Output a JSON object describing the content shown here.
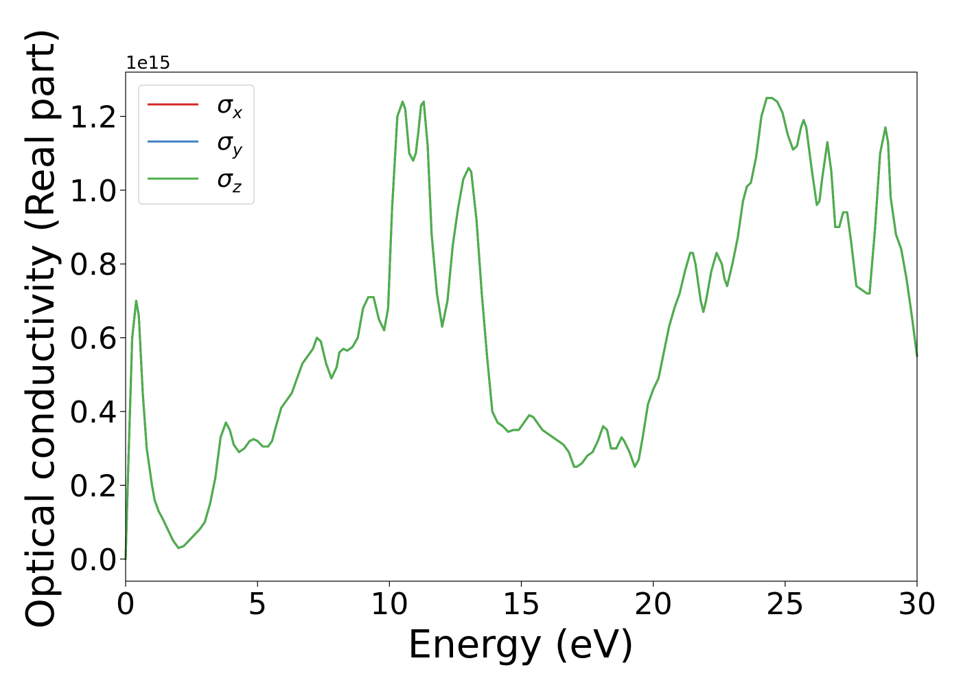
{
  "chart_data": {
    "type": "line",
    "title": "",
    "xlabel": "Energy (eV)",
    "ylabel": "Optical conductivity (Real part)",
    "y_offset_label": "1e15",
    "y_scale_factor": 1000000000000000.0,
    "xlim": [
      0,
      30
    ],
    "ylim": [
      -0.06,
      1.32
    ],
    "x_ticks": [
      0,
      5,
      10,
      15,
      20,
      25,
      30
    ],
    "x_tick_labels": [
      "0",
      "5",
      "10",
      "15",
      "20",
      "25",
      "30"
    ],
    "y_ticks": [
      0.0,
      0.2,
      0.4,
      0.6,
      0.8,
      1.0,
      1.2
    ],
    "y_tick_labels": [
      "0.0",
      "0.2",
      "0.4",
      "0.6",
      "0.8",
      "1.0",
      "1.2"
    ],
    "grid": false,
    "legend_position": "top-left",
    "series_note": "All three components overlap exactly; values given in units of 1e15.",
    "x": [
      0,
      0.1,
      0.25,
      0.4,
      0.5,
      0.65,
      0.8,
      1.0,
      1.1,
      1.25,
      1.4,
      1.6,
      1.8,
      2.0,
      2.2,
      2.4,
      2.6,
      2.8,
      3.0,
      3.2,
      3.4,
      3.6,
      3.8,
      3.95,
      4.1,
      4.3,
      4.5,
      4.7,
      4.85,
      5.0,
      5.2,
      5.4,
      5.55,
      5.7,
      5.9,
      6.1,
      6.3,
      6.5,
      6.7,
      6.9,
      7.1,
      7.25,
      7.4,
      7.5,
      7.6,
      7.8,
      8.0,
      8.1,
      8.25,
      8.4,
      8.6,
      8.8,
      9.0,
      9.2,
      9.4,
      9.6,
      9.8,
      9.95,
      10.1,
      10.3,
      10.5,
      10.6,
      10.75,
      10.9,
      11.0,
      11.1,
      11.2,
      11.3,
      11.45,
      11.6,
      11.8,
      12.0,
      12.2,
      12.4,
      12.6,
      12.8,
      13.0,
      13.1,
      13.3,
      13.5,
      13.7,
      13.9,
      14.1,
      14.3,
      14.5,
      14.7,
      14.9,
      15.1,
      15.3,
      15.45,
      15.6,
      15.8,
      16.0,
      16.2,
      16.4,
      16.6,
      16.8,
      17.0,
      17.1,
      17.3,
      17.5,
      17.7,
      17.9,
      18.1,
      18.25,
      18.4,
      18.6,
      18.8,
      18.9,
      19.1,
      19.3,
      19.45,
      19.6,
      19.8,
      19.9,
      20.0,
      20.2,
      20.4,
      20.6,
      20.8,
      21.0,
      21.2,
      21.4,
      21.5,
      21.6,
      21.8,
      21.9,
      22.0,
      22.2,
      22.4,
      22.6,
      22.7,
      22.8,
      23.0,
      23.2,
      23.4,
      23.55,
      23.7,
      23.9,
      24.1,
      24.3,
      24.5,
      24.7,
      24.9,
      25.1,
      25.3,
      25.45,
      25.6,
      25.7,
      25.8,
      26.0,
      26.2,
      26.3,
      26.4,
      26.6,
      26.75,
      26.9,
      27.05,
      27.2,
      27.35,
      27.5,
      27.7,
      27.9,
      28.1,
      28.2,
      28.4,
      28.6,
      28.8,
      28.9,
      29.0,
      29.2,
      29.4,
      29.6,
      29.8,
      30.0
    ],
    "series": [
      {
        "name": "σx",
        "color": "#d62728",
        "values": [
          0.0,
          0.25,
          0.6,
          0.7,
          0.66,
          0.45,
          0.3,
          0.2,
          0.16,
          0.13,
          0.11,
          0.08,
          0.05,
          0.03,
          0.035,
          0.05,
          0.065,
          0.08,
          0.1,
          0.15,
          0.22,
          0.33,
          0.37,
          0.35,
          0.31,
          0.29,
          0.3,
          0.32,
          0.325,
          0.32,
          0.305,
          0.305,
          0.32,
          0.36,
          0.41,
          0.43,
          0.45,
          0.49,
          0.53,
          0.55,
          0.57,
          0.6,
          0.59,
          0.56,
          0.53,
          0.49,
          0.52,
          0.56,
          0.57,
          0.565,
          0.575,
          0.6,
          0.68,
          0.71,
          0.71,
          0.65,
          0.62,
          0.68,
          0.95,
          1.2,
          1.24,
          1.22,
          1.1,
          1.08,
          1.1,
          1.16,
          1.23,
          1.24,
          1.12,
          0.88,
          0.72,
          0.63,
          0.7,
          0.85,
          0.95,
          1.03,
          1.06,
          1.05,
          0.92,
          0.72,
          0.55,
          0.4,
          0.37,
          0.36,
          0.345,
          0.35,
          0.35,
          0.37,
          0.39,
          0.385,
          0.37,
          0.35,
          0.34,
          0.33,
          0.32,
          0.31,
          0.29,
          0.25,
          0.25,
          0.26,
          0.28,
          0.29,
          0.32,
          0.36,
          0.35,
          0.3,
          0.3,
          0.33,
          0.32,
          0.29,
          0.25,
          0.27,
          0.33,
          0.42,
          0.44,
          0.46,
          0.49,
          0.56,
          0.63,
          0.68,
          0.72,
          0.78,
          0.83,
          0.83,
          0.8,
          0.7,
          0.67,
          0.7,
          0.78,
          0.83,
          0.8,
          0.76,
          0.74,
          0.8,
          0.87,
          0.97,
          1.01,
          1.02,
          1.09,
          1.2,
          1.25,
          1.25,
          1.24,
          1.21,
          1.15,
          1.11,
          1.12,
          1.17,
          1.19,
          1.17,
          1.06,
          0.96,
          0.97,
          1.03,
          1.13,
          1.05,
          0.9,
          0.9,
          0.94,
          0.94,
          0.86,
          0.74,
          0.73,
          0.72,
          0.72,
          0.89,
          1.1,
          1.17,
          1.13,
          0.98,
          0.88,
          0.84,
          0.76,
          0.66,
          0.55
        ]
      },
      {
        "name": "σy",
        "color": "#3f7fbf",
        "values": [
          0.0,
          0.25,
          0.6,
          0.7,
          0.66,
          0.45,
          0.3,
          0.2,
          0.16,
          0.13,
          0.11,
          0.08,
          0.05,
          0.03,
          0.035,
          0.05,
          0.065,
          0.08,
          0.1,
          0.15,
          0.22,
          0.33,
          0.37,
          0.35,
          0.31,
          0.29,
          0.3,
          0.32,
          0.325,
          0.32,
          0.305,
          0.305,
          0.32,
          0.36,
          0.41,
          0.43,
          0.45,
          0.49,
          0.53,
          0.55,
          0.57,
          0.6,
          0.59,
          0.56,
          0.53,
          0.49,
          0.52,
          0.56,
          0.57,
          0.565,
          0.575,
          0.6,
          0.68,
          0.71,
          0.71,
          0.65,
          0.62,
          0.68,
          0.95,
          1.2,
          1.24,
          1.22,
          1.1,
          1.08,
          1.1,
          1.16,
          1.23,
          1.24,
          1.12,
          0.88,
          0.72,
          0.63,
          0.7,
          0.85,
          0.95,
          1.03,
          1.06,
          1.05,
          0.92,
          0.72,
          0.55,
          0.4,
          0.37,
          0.36,
          0.345,
          0.35,
          0.35,
          0.37,
          0.39,
          0.385,
          0.37,
          0.35,
          0.34,
          0.33,
          0.32,
          0.31,
          0.29,
          0.25,
          0.25,
          0.26,
          0.28,
          0.29,
          0.32,
          0.36,
          0.35,
          0.3,
          0.3,
          0.33,
          0.32,
          0.29,
          0.25,
          0.27,
          0.33,
          0.42,
          0.44,
          0.46,
          0.49,
          0.56,
          0.63,
          0.68,
          0.72,
          0.78,
          0.83,
          0.83,
          0.8,
          0.7,
          0.67,
          0.7,
          0.78,
          0.83,
          0.8,
          0.76,
          0.74,
          0.8,
          0.87,
          0.97,
          1.01,
          1.02,
          1.09,
          1.2,
          1.25,
          1.25,
          1.24,
          1.21,
          1.15,
          1.11,
          1.12,
          1.17,
          1.19,
          1.17,
          1.06,
          0.96,
          0.97,
          1.03,
          1.13,
          1.05,
          0.9,
          0.9,
          0.94,
          0.94,
          0.86,
          0.74,
          0.73,
          0.72,
          0.72,
          0.89,
          1.1,
          1.17,
          1.13,
          0.98,
          0.88,
          0.84,
          0.76,
          0.66,
          0.55
        ]
      },
      {
        "name": "σz",
        "color": "#4daf4a",
        "values": [
          0.0,
          0.25,
          0.6,
          0.7,
          0.66,
          0.45,
          0.3,
          0.2,
          0.16,
          0.13,
          0.11,
          0.08,
          0.05,
          0.03,
          0.035,
          0.05,
          0.065,
          0.08,
          0.1,
          0.15,
          0.22,
          0.33,
          0.37,
          0.35,
          0.31,
          0.29,
          0.3,
          0.32,
          0.325,
          0.32,
          0.305,
          0.305,
          0.32,
          0.36,
          0.41,
          0.43,
          0.45,
          0.49,
          0.53,
          0.55,
          0.57,
          0.6,
          0.59,
          0.56,
          0.53,
          0.49,
          0.52,
          0.56,
          0.57,
          0.565,
          0.575,
          0.6,
          0.68,
          0.71,
          0.71,
          0.65,
          0.62,
          0.68,
          0.95,
          1.2,
          1.24,
          1.22,
          1.1,
          1.08,
          1.1,
          1.16,
          1.23,
          1.24,
          1.12,
          0.88,
          0.72,
          0.63,
          0.7,
          0.85,
          0.95,
          1.03,
          1.06,
          1.05,
          0.92,
          0.72,
          0.55,
          0.4,
          0.37,
          0.36,
          0.345,
          0.35,
          0.35,
          0.37,
          0.39,
          0.385,
          0.37,
          0.35,
          0.34,
          0.33,
          0.32,
          0.31,
          0.29,
          0.25,
          0.25,
          0.26,
          0.28,
          0.29,
          0.32,
          0.36,
          0.35,
          0.3,
          0.3,
          0.33,
          0.32,
          0.29,
          0.25,
          0.27,
          0.33,
          0.42,
          0.44,
          0.46,
          0.49,
          0.56,
          0.63,
          0.68,
          0.72,
          0.78,
          0.83,
          0.83,
          0.8,
          0.7,
          0.67,
          0.7,
          0.78,
          0.83,
          0.8,
          0.76,
          0.74,
          0.8,
          0.87,
          0.97,
          1.01,
          1.02,
          1.09,
          1.2,
          1.25,
          1.25,
          1.24,
          1.21,
          1.15,
          1.11,
          1.12,
          1.17,
          1.19,
          1.17,
          1.06,
          0.96,
          0.97,
          1.03,
          1.13,
          1.05,
          0.9,
          0.9,
          0.94,
          0.94,
          0.86,
          0.74,
          0.73,
          0.72,
          0.72,
          0.89,
          1.1,
          1.17,
          1.13,
          0.98,
          0.88,
          0.84,
          0.76,
          0.66,
          0.55
        ]
      }
    ]
  },
  "legend": {
    "entries": [
      {
        "symbol": "σ",
        "subscript": "x",
        "color": "#d62728"
      },
      {
        "symbol": "σ",
        "subscript": "y",
        "color": "#3f7fbf"
      },
      {
        "symbol": "σ",
        "subscript": "z",
        "color": "#4daf4a"
      }
    ]
  }
}
